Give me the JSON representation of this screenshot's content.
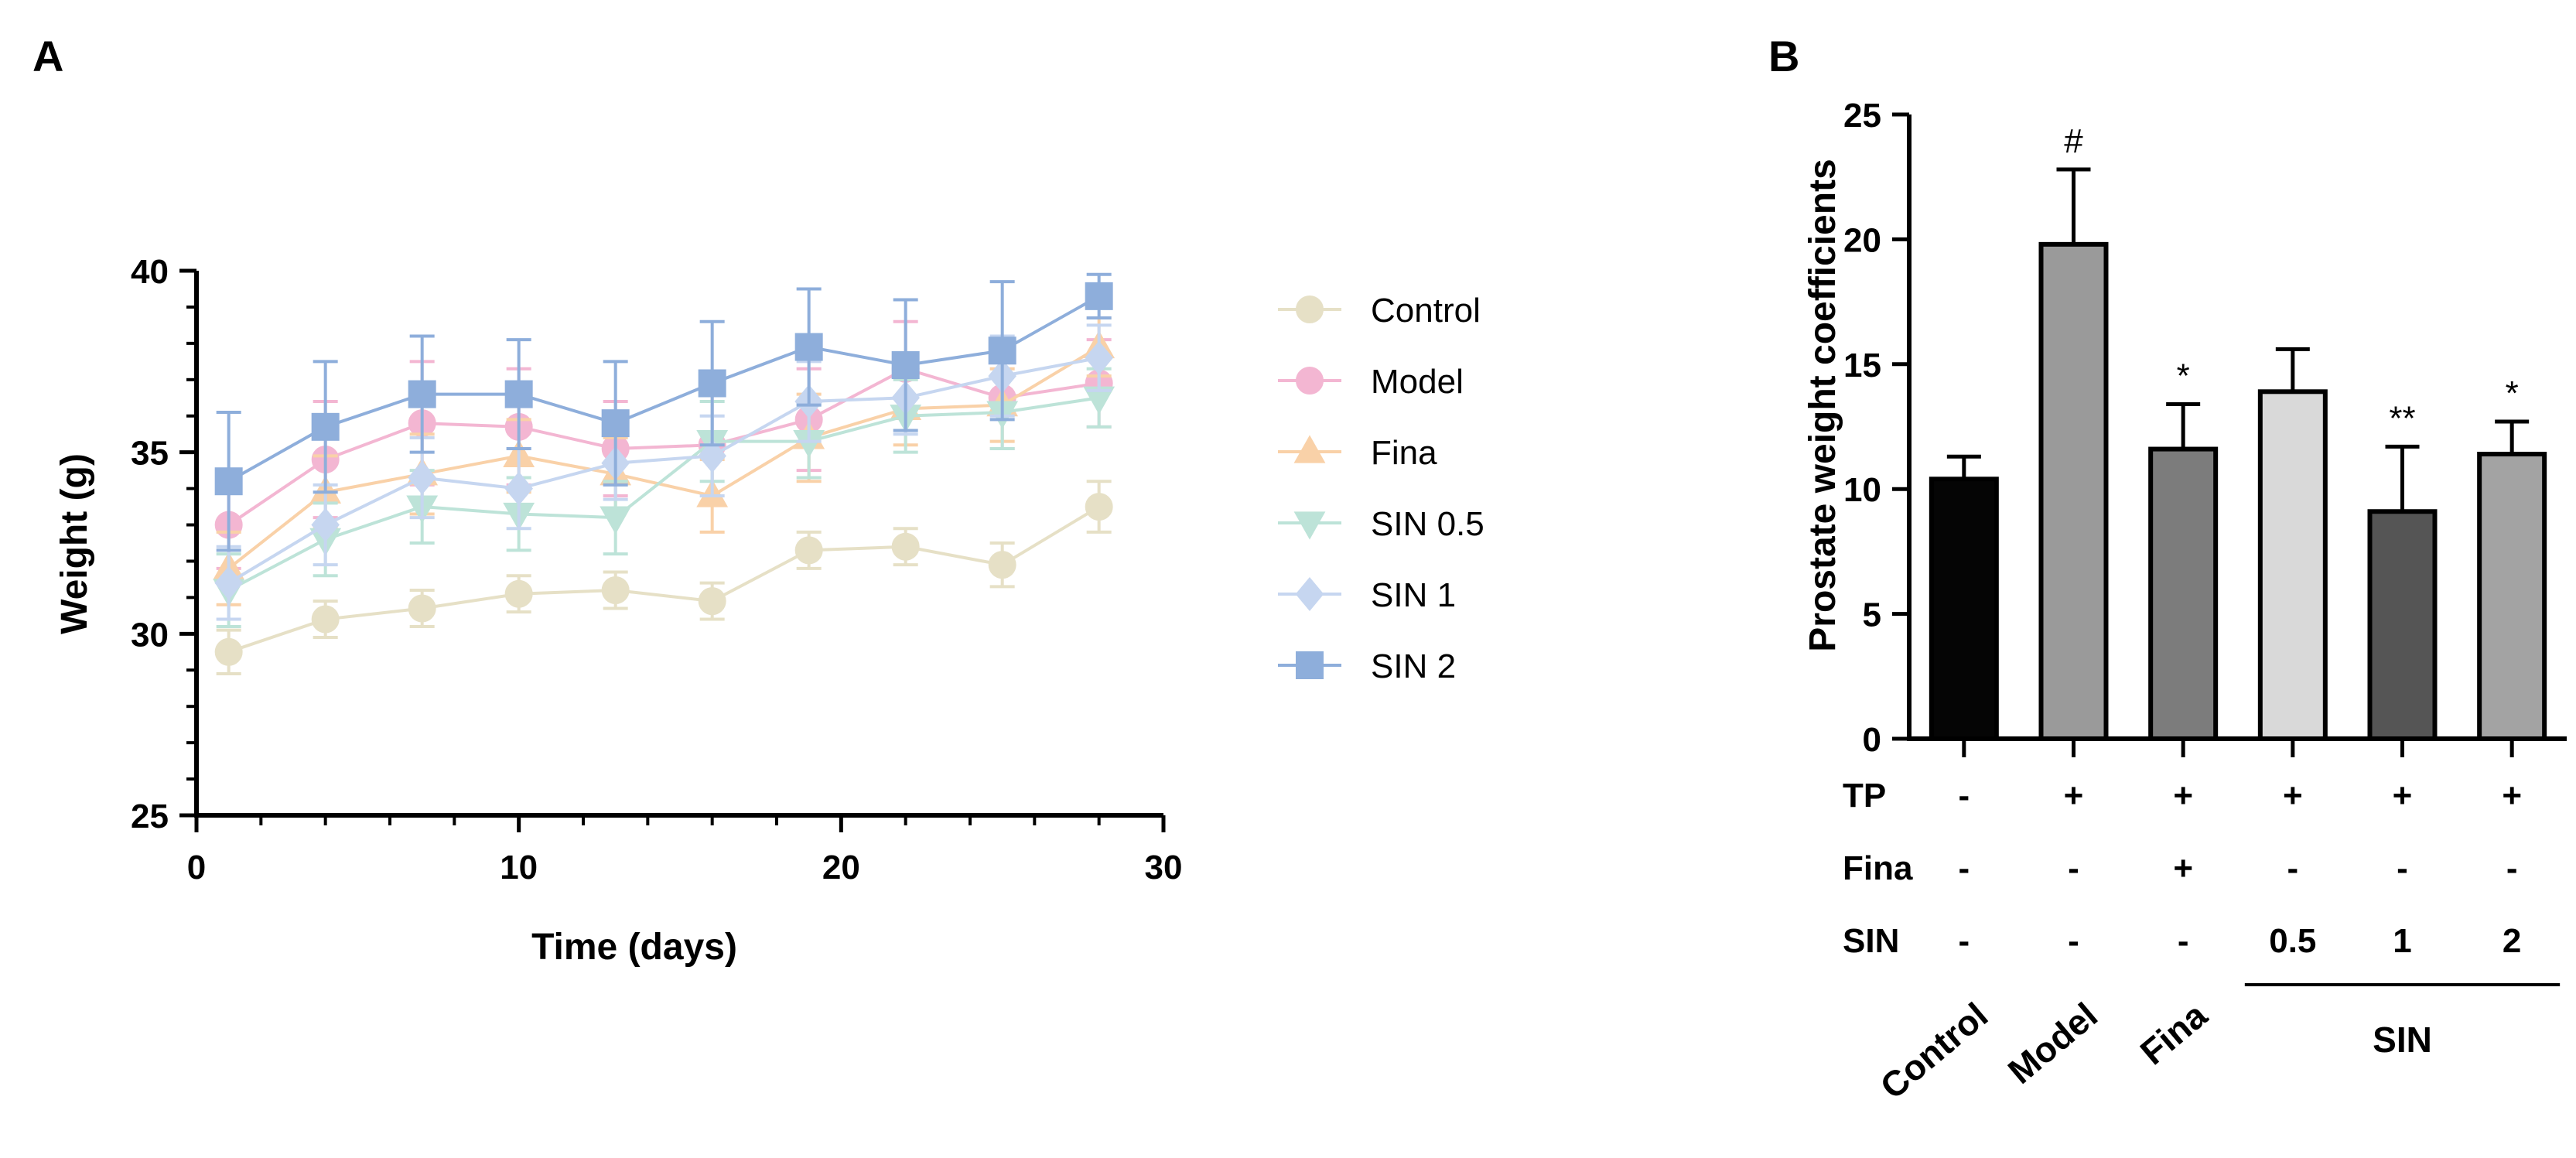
{
  "chart_data": [
    {
      "type": "line",
      "panel_label": "A",
      "xlabel": "Time (days)",
      "ylabel": "Weight (g)",
      "xlim": [
        0,
        30
      ],
      "ylim": [
        25,
        40
      ],
      "xticks": [
        "0",
        "10",
        "20",
        "30"
      ],
      "yticks": [
        "25",
        "30",
        "35",
        "40"
      ],
      "grid": false,
      "legend_position": "right",
      "x": [
        1,
        4,
        7,
        10,
        13,
        16,
        19,
        22,
        25,
        28
      ],
      "series": [
        {
          "name": "Control",
          "marker": "circle",
          "color": "#e6e0c6",
          "values": [
            29.5,
            30.4,
            30.7,
            31.1,
            31.2,
            30.9,
            32.3,
            32.4,
            31.9,
            33.5
          ],
          "errors": [
            0.6,
            0.5,
            0.5,
            0.5,
            0.5,
            0.5,
            0.5,
            0.5,
            0.6,
            0.7
          ]
        },
        {
          "name": "Model",
          "marker": "circle",
          "color": "#f3b6d2",
          "values": [
            33.0,
            34.8,
            35.8,
            35.7,
            35.1,
            35.2,
            35.9,
            37.3,
            36.5,
            36.9
          ],
          "errors": [
            1.2,
            1.6,
            1.7,
            1.6,
            1.3,
            1.6,
            1.4,
            1.3,
            1.4,
            1.2
          ]
        },
        {
          "name": "Fina",
          "marker": "triangle-up",
          "color": "#f9d1a8",
          "values": [
            31.8,
            33.9,
            34.4,
            34.9,
            34.4,
            33.8,
            35.4,
            36.2,
            36.3,
            37.9
          ],
          "errors": [
            1.0,
            1.0,
            1.1,
            1.0,
            1.0,
            1.0,
            1.2,
            1.0,
            1.0,
            0.8
          ]
        },
        {
          "name": "SIN 0.5",
          "marker": "triangle-down",
          "color": "#bde3d8",
          "values": [
            31.2,
            32.6,
            33.5,
            33.3,
            33.2,
            35.3,
            35.3,
            36.0,
            36.1,
            36.5
          ],
          "errors": [
            1.0,
            1.0,
            1.0,
            1.0,
            1.0,
            1.1,
            1.0,
            1.0,
            1.0,
            0.8
          ]
        },
        {
          "name": "SIN 1",
          "marker": "diamond",
          "color": "#c6d6f0",
          "values": [
            31.4,
            33.0,
            34.3,
            34.0,
            34.7,
            34.9,
            36.4,
            36.5,
            37.1,
            37.6
          ],
          "errors": [
            1.0,
            1.1,
            1.1,
            1.1,
            1.0,
            1.1,
            1.1,
            1.0,
            1.1,
            0.9
          ]
        },
        {
          "name": "SIN 2",
          "marker": "square",
          "color": "#8eaedb",
          "values": [
            34.2,
            35.7,
            36.6,
            36.6,
            35.8,
            36.9,
            37.9,
            37.4,
            37.8,
            39.3
          ],
          "errors": [
            1.9,
            1.8,
            1.6,
            1.5,
            1.7,
            1.7,
            1.6,
            1.8,
            1.9,
            0.6
          ]
        }
      ]
    },
    {
      "type": "bar",
      "panel_label": "B",
      "ylabel": "Prostate weight coefficients",
      "ylim": [
        0,
        25
      ],
      "yticks": [
        "0",
        "5",
        "10",
        "15",
        "20",
        "25"
      ],
      "grid": false,
      "categories": [
        "Control",
        "Model",
        "Fina",
        "SIN 0.5",
        "SIN 1",
        "SIN 2"
      ],
      "values": [
        10.4,
        19.8,
        11.6,
        13.9,
        9.1,
        11.4
      ],
      "errors": [
        0.9,
        3.0,
        1.8,
        1.7,
        2.6,
        1.3
      ],
      "colors": [
        "#050505",
        "#9a9a9a",
        "#7c7c7c",
        "#d9d9d9",
        "#555555",
        "#a3a3a3"
      ],
      "significance": [
        "",
        "#",
        "*",
        "",
        "**",
        "*"
      ],
      "treatment_table": [
        {
          "label": "TP",
          "values": [
            "-",
            "+",
            "+",
            "+",
            "+",
            "+"
          ]
        },
        {
          "label": "Fina",
          "values": [
            "-",
            "-",
            "+",
            "-",
            "-",
            "-"
          ]
        },
        {
          "label": "SIN",
          "values": [
            "-",
            "-",
            "-",
            "0.5",
            "1",
            "2"
          ]
        }
      ],
      "group_labels": [
        "Control",
        "Model",
        "Fina"
      ],
      "bracket_label": "SIN"
    }
  ]
}
